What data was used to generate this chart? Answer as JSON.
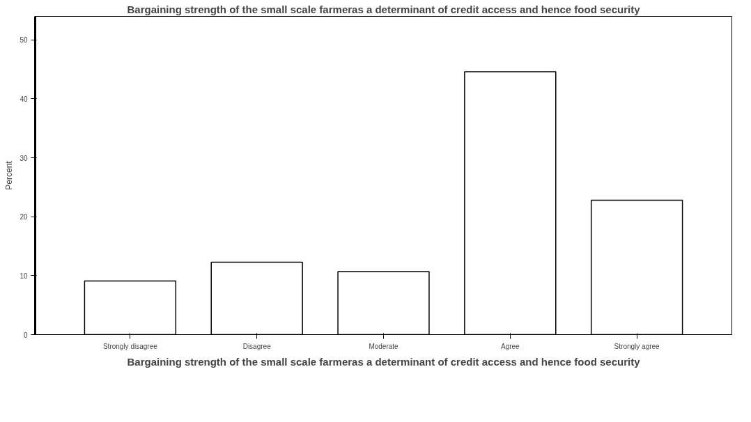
{
  "chart_data": {
    "type": "bar",
    "title": "Bargaining strength of the small scale farmeras a determinant of credit access and hence food security",
    "xlabel": "Bargaining strength of the small scale farmeras a determinant of credit access and hence food security",
    "ylabel": "Percent",
    "categories": [
      "Strongly disagree",
      "Disagree",
      "Moderate",
      "Agree",
      "Strongly agree"
    ],
    "values": [
      9.1,
      12.3,
      10.7,
      44.6,
      22.8
    ],
    "color": "#ffffff",
    "ylim": [
      0,
      54
    ],
    "yticks": [
      0,
      10,
      20,
      30,
      40,
      50
    ],
    "grid": false
  }
}
